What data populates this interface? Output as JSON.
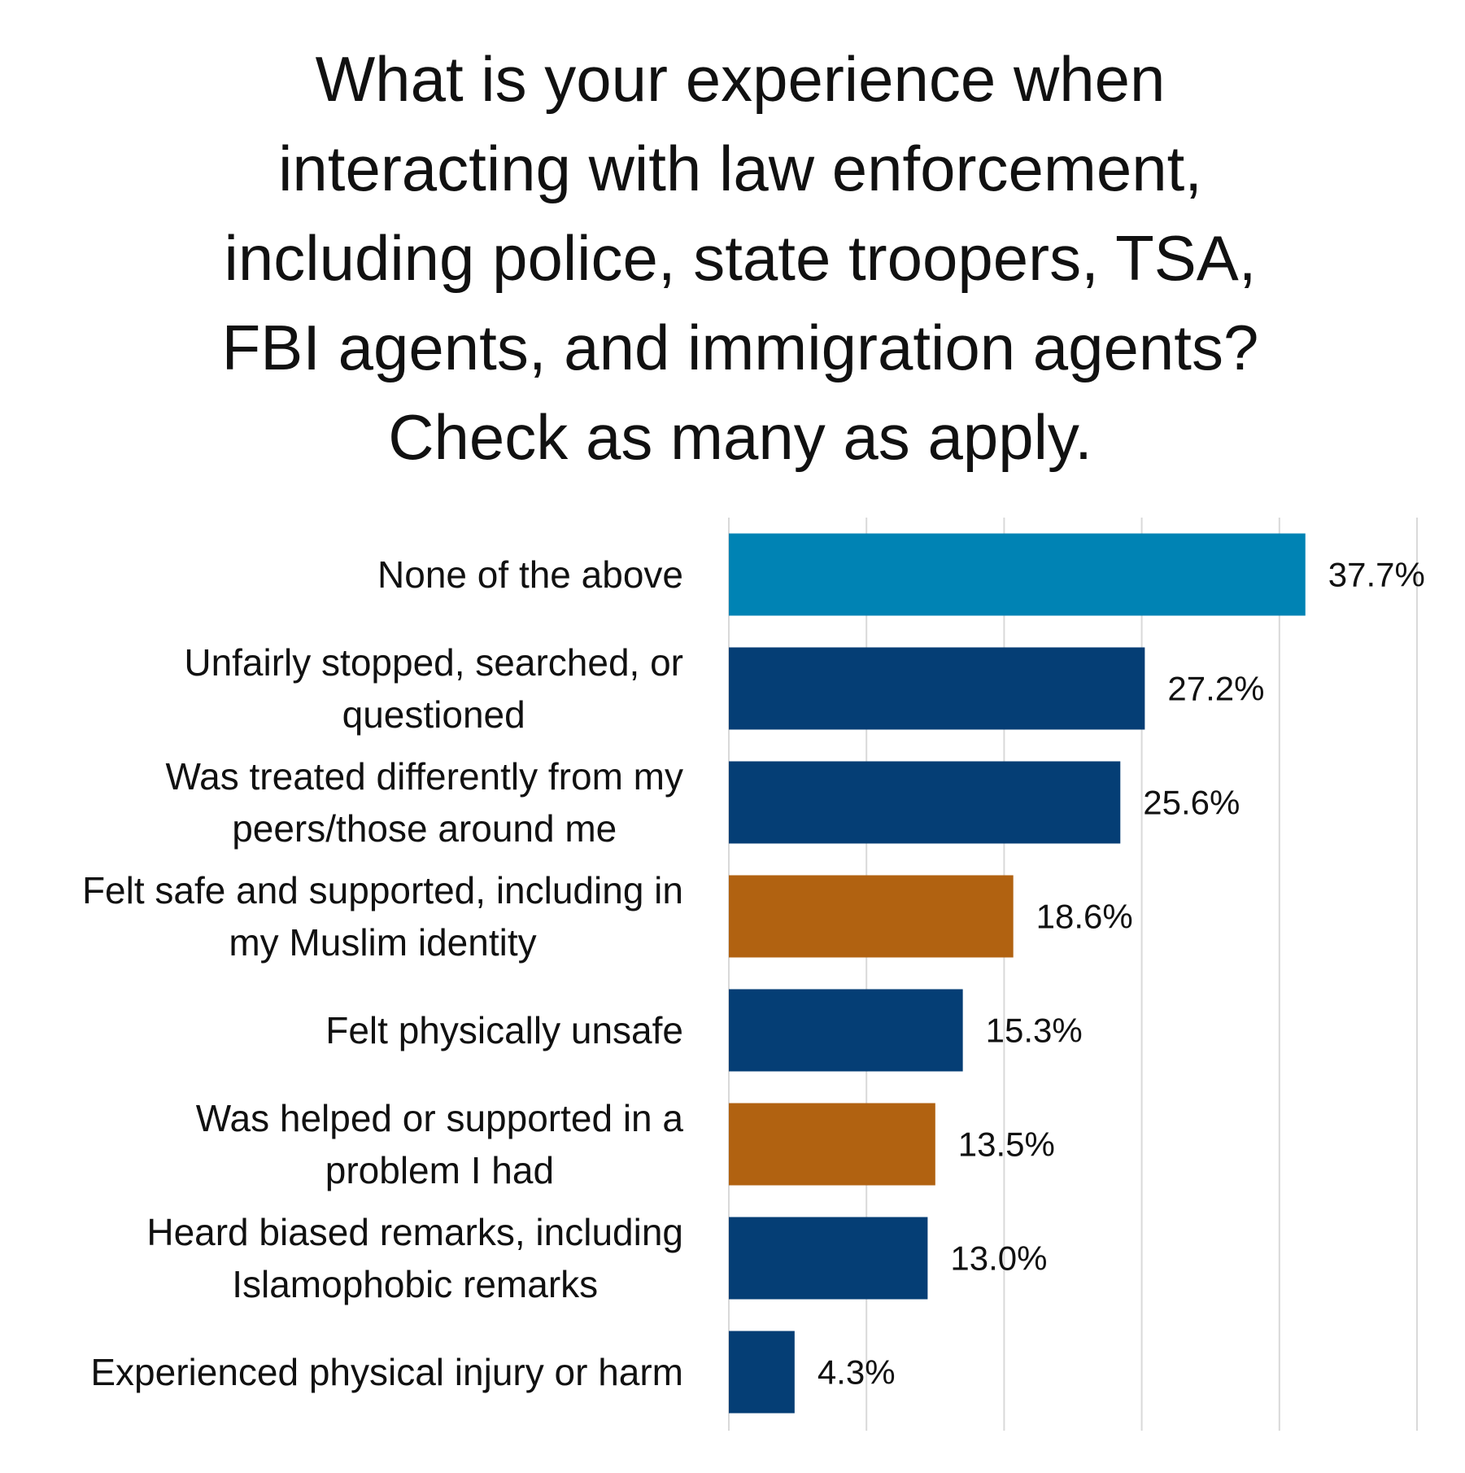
{
  "chart_data": {
    "type": "bar",
    "orientation": "horizontal",
    "title_lines": [
      "What is your experience when",
      "interacting with law enforcement,",
      "including police, state troopers, TSA,",
      "FBI agents, and immigration agents?",
      "Check as many as apply."
    ],
    "categories": [
      [
        "None of the above"
      ],
      [
        "Unfairly stopped, searched, or",
        "questioned"
      ],
      [
        "Was treated differently from my",
        "peers/those around me"
      ],
      [
        "Felt safe and supported, including in",
        "my Muslim identity"
      ],
      [
        "Felt physically unsafe"
      ],
      [
        "Was helped or supported in a",
        "problem I had"
      ],
      [
        "Heard biased remarks, including",
        "Islamophobic remarks"
      ],
      [
        "Experienced physical injury or harm"
      ]
    ],
    "values": [
      37.7,
      27.2,
      25.6,
      18.6,
      15.3,
      13.5,
      13.0,
      4.3
    ],
    "value_labels": [
      "37.7%",
      "27.2%",
      "25.6%",
      "18.6%",
      "15.3%",
      "13.5%",
      "13.0%",
      "4.3%"
    ],
    "bar_colors": [
      "#0083b4",
      "#053e75",
      "#053e75",
      "#b16211",
      "#053e75",
      "#b16211",
      "#053e75",
      "#053e75"
    ],
    "xlim": [
      0,
      45
    ],
    "gridlines": [
      0,
      9,
      18,
      27,
      36,
      45
    ],
    "grid": true,
    "x_tick_labels_shown": false,
    "grid_color": "#d9d9d9",
    "legend": "none"
  }
}
